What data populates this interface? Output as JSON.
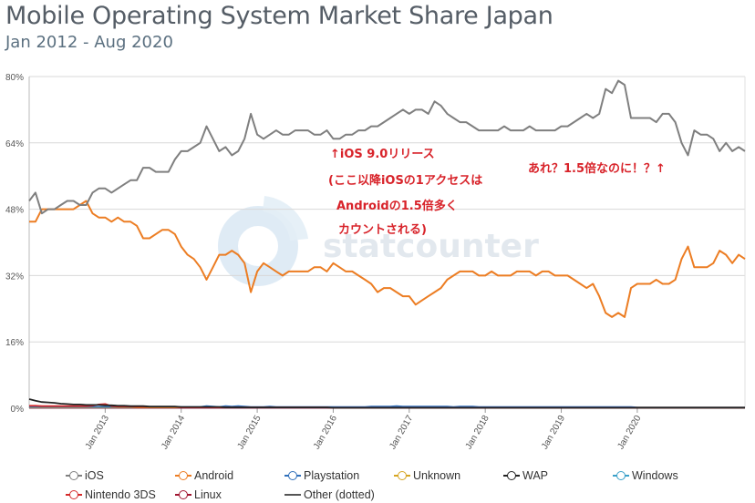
{
  "title": "Mobile Operating System Market Share Japan",
  "subtitle": "Jan 2012 - Aug 2020",
  "watermark": "statcounter",
  "annotations": {
    "left_lines": [
      "↑iOS 9.0リリース",
      "(ここ以降iOSの1アクセスは",
      "Androidの1.5倍多く",
      "カウントされる)"
    ],
    "right": "あれ？1.5倍なのに！？↑",
    "color": "#d8232a"
  },
  "legend": [
    {
      "name": "iOS",
      "color": "#7f7f7f"
    },
    {
      "name": "Android",
      "color": "#ec7d23"
    },
    {
      "name": "Playstation",
      "color": "#2f6fba"
    },
    {
      "name": "Unknown",
      "color": "#d6a521"
    },
    {
      "name": "WAP",
      "color": "#222222"
    },
    {
      "name": "Windows",
      "color": "#3aa0c9"
    },
    {
      "name": "Nintendo 3DS",
      "color": "#d42a2a"
    },
    {
      "name": "Linux",
      "color": "#a01530"
    },
    {
      "name": "Other (dotted)",
      "color": "#555555"
    }
  ],
  "chart_data": {
    "type": "line",
    "x_start": "2012-01",
    "x_end": "2020-08",
    "x_ticks": [
      "Jan 2013",
      "Jan 2014",
      "Jan 2015",
      "Jan 2016",
      "Jan 2017",
      "Jan 2018",
      "Jan 2019",
      "Jan 2020"
    ],
    "ylim": [
      0,
      80
    ],
    "y_ticks": [
      "0%",
      "16%",
      "32%",
      "48%",
      "64%",
      "80%"
    ],
    "grid": true,
    "legend_position": "bottom",
    "series": [
      {
        "name": "iOS",
        "color": "#7f7f7f",
        "values": [
          50,
          52,
          47,
          48,
          48,
          49,
          50,
          50,
          49,
          49,
          52,
          53,
          53,
          52,
          53,
          54,
          55,
          55,
          58,
          58,
          57,
          57,
          57,
          60,
          62,
          62,
          63,
          64,
          68,
          65,
          62,
          63,
          61,
          62,
          65,
          71,
          66,
          65,
          66,
          67,
          66,
          66,
          67,
          67,
          67,
          66,
          66,
          67,
          65,
          65,
          66,
          66,
          67,
          67,
          68,
          68,
          69,
          70,
          71,
          72,
          71,
          72,
          72,
          71,
          74,
          73,
          71,
          70,
          69,
          69,
          68,
          67,
          67,
          67,
          67,
          68,
          67,
          67,
          67,
          68,
          67,
          67,
          67,
          67,
          68,
          68,
          69,
          70,
          71,
          70,
          71,
          77,
          76,
          79,
          78,
          70,
          70,
          70,
          70,
          69,
          71,
          71,
          69,
          64,
          61,
          67,
          66,
          66,
          65,
          62,
          64,
          62,
          63,
          62
        ]
      },
      {
        "name": "Android",
        "color": "#ec7d23",
        "values": [
          45,
          45,
          48,
          48,
          48,
          48,
          48,
          48,
          49,
          50,
          47,
          46,
          46,
          45,
          46,
          45,
          45,
          44,
          41,
          41,
          42,
          43,
          43,
          42,
          39,
          37,
          36,
          34,
          31,
          34,
          37,
          37,
          38,
          37,
          35,
          28,
          33,
          35,
          34,
          33,
          32,
          33,
          33,
          33,
          33,
          34,
          34,
          33,
          35,
          34,
          33,
          33,
          32,
          31,
          30,
          28,
          29,
          29,
          28,
          27,
          27,
          25,
          26,
          27,
          28,
          29,
          31,
          32,
          33,
          33,
          33,
          32,
          32,
          33,
          32,
          32,
          32,
          33,
          33,
          33,
          32,
          33,
          33,
          32,
          32,
          32,
          31,
          30,
          29,
          30,
          27,
          23,
          22,
          23,
          22,
          29,
          30,
          30,
          30,
          31,
          30,
          30,
          31,
          36,
          39,
          34,
          34,
          34,
          35,
          38,
          37,
          35,
          37,
          36
        ]
      },
      {
        "name": "WAP",
        "color": "#222222",
        "values": [
          2.2,
          1.8,
          1.5,
          1.4,
          1.3,
          1.1,
          1.0,
          0.9,
          0.9,
          0.8,
          0.8,
          0.8,
          0.7,
          0.7,
          0.6,
          0.6,
          0.5,
          0.5,
          0.5,
          0.4,
          0.4,
          0.4,
          0.4,
          0.4,
          0.3,
          0.3,
          0.3,
          0.3,
          0.3,
          0.3,
          0.3,
          0.2,
          0.2,
          0.2,
          0.2,
          0.2,
          0.2,
          0.2,
          0.2,
          0.2,
          0.2,
          0.2,
          0.2,
          0.2,
          0.2,
          0.2,
          0.2,
          0.2,
          0.1,
          0.1,
          0.1,
          0.1,
          0.1,
          0.1,
          0.1,
          0.1,
          0.1,
          0.1,
          0.1,
          0.1,
          0.1,
          0.1,
          0.1,
          0.1,
          0.1,
          0.1,
          0.1,
          0.1,
          0.1,
          0.1,
          0.1,
          0.1,
          0.1,
          0.1,
          0.1,
          0.1,
          0.1,
          0.1,
          0.1,
          0.1,
          0.1,
          0.1,
          0.1,
          0.1,
          0.1,
          0.1,
          0.1,
          0.1,
          0.1,
          0.1,
          0.1,
          0.1,
          0.1,
          0.1,
          0.1,
          0.1,
          0.1,
          0.1,
          0.1,
          0.1,
          0.1,
          0.1,
          0.1,
          0.1,
          0.1,
          0.1,
          0.1,
          0.1,
          0.1,
          0.1,
          0.1,
          0.1,
          0.1,
          0.1
        ]
      },
      {
        "name": "Nintendo 3DS",
        "color": "#d42a2a",
        "values": [
          0.6,
          0.6,
          0.5,
          0.5,
          0.5,
          0.5,
          0.5,
          0.5,
          0.5,
          0.5,
          0.6,
          0.9,
          1.0,
          0.5,
          0.4,
          0.4,
          0.4,
          0.3,
          0.3,
          0.3,
          0.3,
          0.3,
          0.3,
          0.3,
          0.2,
          0.2,
          0.2,
          0.2,
          0.2,
          0.2,
          0.2,
          0.2,
          0.2,
          0.2,
          0.2,
          0.2,
          0.2,
          0.2,
          0.2,
          0.2,
          0.2,
          0.2,
          0.2,
          0.2,
          0.2,
          0.2,
          0.2,
          0.2,
          0.1,
          0.1,
          0.1,
          0.1,
          0.1,
          0.1,
          0.1,
          0.1,
          0.1,
          0.1,
          0.1,
          0.1,
          0.1,
          0.1,
          0.1,
          0.1,
          0.1,
          0.1,
          0.1,
          0.1,
          0.1,
          0.1,
          0.1,
          0.1,
          0.1,
          0.1,
          0.1,
          0.1,
          0.1,
          0.1,
          0.1,
          0.1,
          0.1,
          0.1,
          0.1,
          0.1,
          0.1,
          0.1,
          0.1,
          0.1,
          0.1,
          0.1,
          0.1,
          0.1,
          0.1,
          0.1,
          0.1,
          0.1,
          0.1,
          0.1,
          0.1,
          0.1,
          0.1,
          0.1,
          0.1,
          0.1,
          0.1,
          0.1,
          0.1,
          0.1,
          0.1,
          0.1,
          0.1,
          0.1,
          0.1,
          0.1
        ]
      },
      {
        "name": "Playstation",
        "color": "#2f6fba",
        "values": [
          0.3,
          0.3,
          0.3,
          0.3,
          0.3,
          0.3,
          0.3,
          0.3,
          0.3,
          0.3,
          0.3,
          0.3,
          0.3,
          0.3,
          0.3,
          0.3,
          0.3,
          0.3,
          0.3,
          0.3,
          0.3,
          0.3,
          0.3,
          0.3,
          0.3,
          0.3,
          0.3,
          0.3,
          0.5,
          0.4,
          0.3,
          0.5,
          0.4,
          0.5,
          0.4,
          0.3,
          0.3,
          0.3,
          0.4,
          0.3,
          0.3,
          0.3,
          0.3,
          0.3,
          0.3,
          0.3,
          0.3,
          0.3,
          0.3,
          0.3,
          0.3,
          0.3,
          0.3,
          0.3,
          0.4,
          0.4,
          0.4,
          0.4,
          0.5,
          0.4,
          0.4,
          0.4,
          0.4,
          0.4,
          0.4,
          0.4,
          0.4,
          0.3,
          0.4,
          0.4,
          0.4,
          0.3,
          0.3,
          0.3,
          0.3,
          0.3,
          0.3,
          0.3,
          0.3,
          0.3,
          0.3,
          0.3,
          0.3,
          0.3,
          0.3,
          0.3,
          0.3,
          0.3,
          0.3,
          0.3,
          0.3,
          0.3,
          0.3,
          0.3,
          0.3,
          0.3,
          0.2,
          0.2,
          0.2,
          0.2,
          0.2,
          0.2,
          0.2,
          0.2,
          0.2,
          0.2,
          0.2,
          0.2,
          0.2,
          0.2,
          0.2,
          0.2,
          0.2,
          0.2
        ]
      },
      {
        "name": "Unknown",
        "color": "#d6a521",
        "values": [
          0.2,
          0.2,
          0.2,
          0.2,
          0.2,
          0.2,
          0.2,
          0.2,
          0.2,
          0.2,
          0.2,
          0.2,
          0.2,
          0.2,
          0.2,
          0.2,
          0.2,
          0.2,
          0.2,
          0.2,
          0.2,
          0.2,
          0.2,
          0.2,
          0.2,
          0.2,
          0.2,
          0.2,
          0.2,
          0.2,
          0.2,
          0.2,
          0.2,
          0.2,
          0.2,
          0.2,
          0.2,
          0.2,
          0.2,
          0.2,
          0.2,
          0.2,
          0.2,
          0.2,
          0.2,
          0.2,
          0.2,
          0.2,
          0.2,
          0.2,
          0.2,
          0.2,
          0.2,
          0.2,
          0.2,
          0.2,
          0.2,
          0.2,
          0.2,
          0.2,
          0.2,
          0.2,
          0.2,
          0.2,
          0.2,
          0.2,
          0.2,
          0.2,
          0.2,
          0.2,
          0.2,
          0.2,
          0.2,
          0.2,
          0.2,
          0.2,
          0.2,
          0.2,
          0.2,
          0.2,
          0.2,
          0.2,
          0.2,
          0.2,
          0.2,
          0.2,
          0.2,
          0.2,
          0.2,
          0.2,
          0.2,
          0.2,
          0.2,
          0.2,
          0.2,
          0.2,
          0.2,
          0.2,
          0.2,
          0.2,
          0.2,
          0.2,
          0.2,
          0.2,
          0.2,
          0.2,
          0.2,
          0.2,
          0.2,
          0.2,
          0.2,
          0.2,
          0.2,
          0.2
        ]
      },
      {
        "name": "Windows",
        "color": "#3aa0c9",
        "values": [
          0.1,
          0.1,
          0.1,
          0.1,
          0.1,
          0.1,
          0.1,
          0.1,
          0.1,
          0.1,
          0.1,
          0.1,
          0.1,
          0.1,
          0.1,
          0.1,
          0.1,
          0.1,
          0.1,
          0.1,
          0.1,
          0.1,
          0.1,
          0.1,
          0.1,
          0.1,
          0.1,
          0.1,
          0.1,
          0.1,
          0.1,
          0.1,
          0.1,
          0.1,
          0.1,
          0.1,
          0.1,
          0.1,
          0.1,
          0.1,
          0.1,
          0.1,
          0.1,
          0.1,
          0.1,
          0.1,
          0.1,
          0.1,
          0.1,
          0.1,
          0.1,
          0.1,
          0.1,
          0.1,
          0.1,
          0.1,
          0.1,
          0.1,
          0.1,
          0.1,
          0.1,
          0.1,
          0.1,
          0.1,
          0.1,
          0.1,
          0.1,
          0.1,
          0.1,
          0.1,
          0.1,
          0.1,
          0.1,
          0.1,
          0.1,
          0.1,
          0.1,
          0.1,
          0.1,
          0.1,
          0.1,
          0.1,
          0.1,
          0.1,
          0.1,
          0.1,
          0.1,
          0.1,
          0.1,
          0.1,
          0.1,
          0.1,
          0.1,
          0.1,
          0.1,
          0.1,
          0.1,
          0.1,
          0.1,
          0.1,
          0.1,
          0.1,
          0.1,
          0.1,
          0.1,
          0.1,
          0.1,
          0.1,
          0.1,
          0.1,
          0.1,
          0.1,
          0.1,
          0.1
        ]
      },
      {
        "name": "Linux",
        "color": "#a01530",
        "values": [
          0.1,
          0.1,
          0.1,
          0.1,
          0.1,
          0.1,
          0.1,
          0.1,
          0.1,
          0.1,
          0.1,
          0.1,
          0.1,
          0.1,
          0.1,
          0.1,
          0.1,
          0.1,
          0.1,
          0.1,
          0.1,
          0.1,
          0.1,
          0.1,
          0.1,
          0.1,
          0.1,
          0.1,
          0.1,
          0.1,
          0.1,
          0.1,
          0.1,
          0.1,
          0.1,
          0.1,
          0.1,
          0.1,
          0.1,
          0.1,
          0.1,
          0.1,
          0.1,
          0.1,
          0.1,
          0.1,
          0.1,
          0.1,
          0.1,
          0.1,
          0.1,
          0.1,
          0.1,
          0.1,
          0.1,
          0.1,
          0.1,
          0.1,
          0.1,
          0.1,
          0.1,
          0.1,
          0.1,
          0.1,
          0.1,
          0.1,
          0.1,
          0.1,
          0.1,
          0.1,
          0.1,
          0.1,
          0.1,
          0.1,
          0.1,
          0.1,
          0.1,
          0.1,
          0.1,
          0.1,
          0.1,
          0.1,
          0.1,
          0.1,
          0.1,
          0.1,
          0.1,
          0.1,
          0.1,
          0.1,
          0.1,
          0.1,
          0.1,
          0.1,
          0.1,
          0.1,
          0.1,
          0.1,
          0.1,
          0.1,
          0.1,
          0.1,
          0.1,
          0.1,
          0.1,
          0.1,
          0.1,
          0.1,
          0.1,
          0.1,
          0.1,
          0.1,
          0.1,
          0.1
        ]
      }
    ]
  }
}
